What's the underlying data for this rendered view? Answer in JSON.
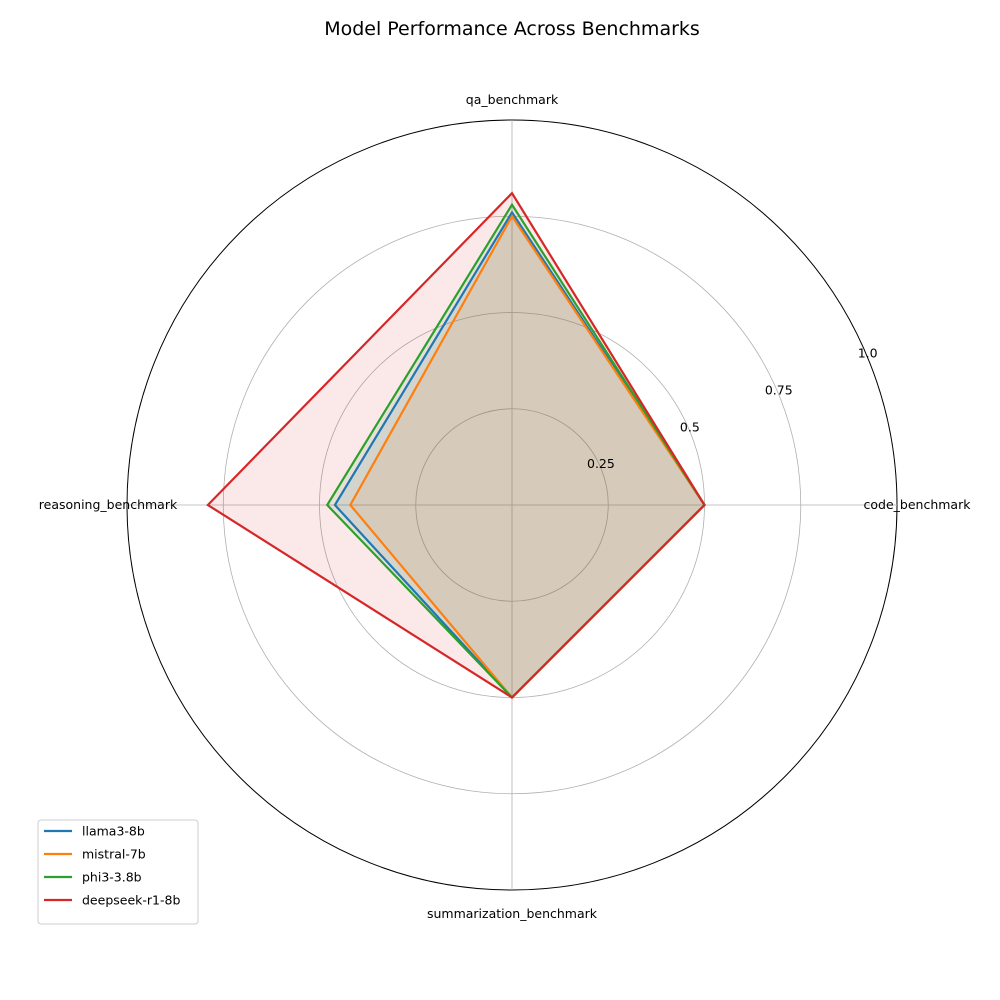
{
  "chart_data": {
    "type": "radar",
    "title": "Model Performance Across Benchmarks",
    "axes": [
      "code_benchmark",
      "qa_benchmark",
      "reasoning_benchmark",
      "summarization_benchmark"
    ],
    "rlim": [
      0,
      1.0
    ],
    "rticks": [
      0.25,
      0.5,
      0.75,
      1.0
    ],
    "rtick_labels": [
      "0.25",
      "0.5",
      "0.75",
      "1.0"
    ],
    "grid": true,
    "legend_position": "lower-left",
    "series": [
      {
        "name": "llama3-8b",
        "color": "#1f77b4",
        "values": [
          0.5,
          0.76,
          0.46,
          0.5
        ]
      },
      {
        "name": "mistral-7b",
        "color": "#ff7f0e",
        "values": [
          0.5,
          0.75,
          0.42,
          0.5
        ]
      },
      {
        "name": "phi3-3.8b",
        "color": "#2ca02c",
        "values": [
          0.5,
          0.78,
          0.48,
          0.5
        ]
      },
      {
        "name": "deepseek-r1-8b",
        "color": "#d62728",
        "values": [
          0.5,
          0.81,
          0.79,
          0.5
        ]
      }
    ]
  }
}
